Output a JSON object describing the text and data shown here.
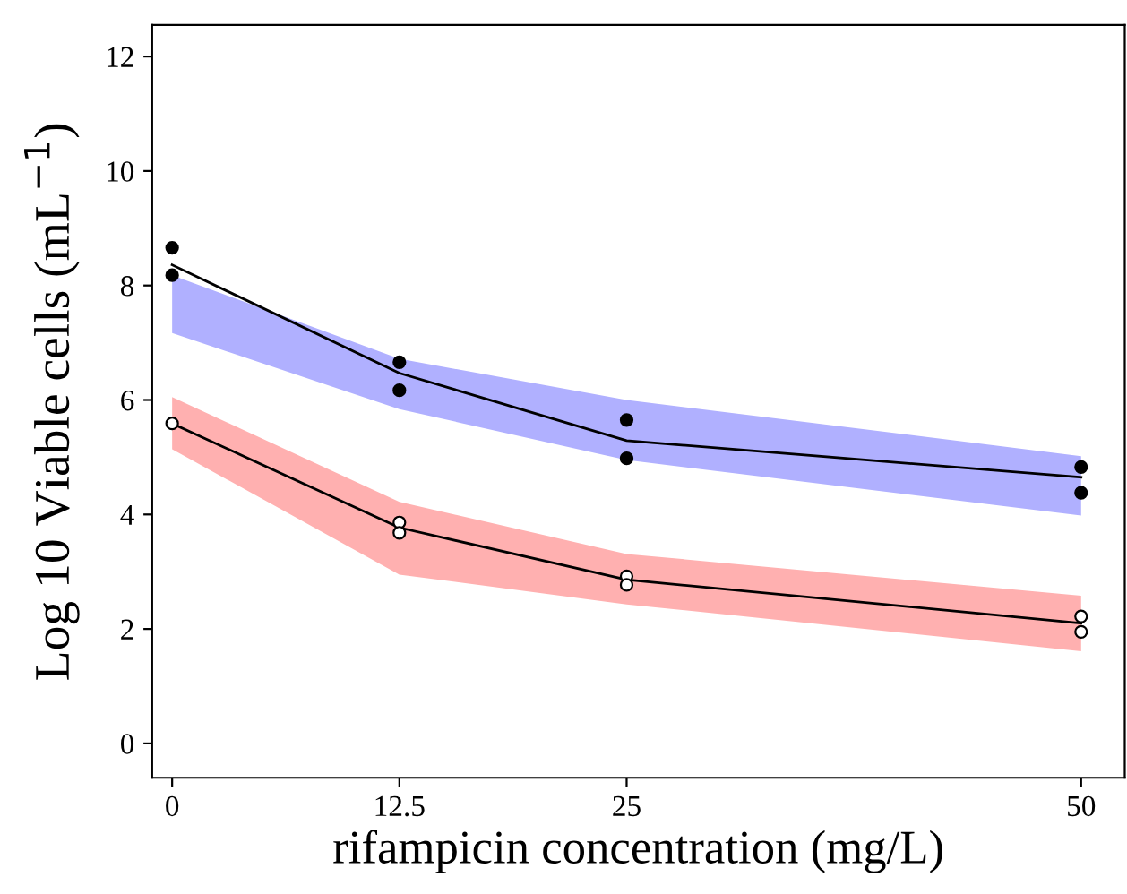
{
  "chart_data": {
    "type": "line",
    "xlabel": "rifampicin concentration (mg/L)",
    "ylabel": "Log 10 Viable cells (mL$^{−1}$)",
    "xlim": [
      -1.1,
      52.4
    ],
    "ylim": [
      -0.6,
      12.55
    ],
    "xticks": [
      0,
      12.5,
      25,
      50
    ],
    "yticks": [
      0,
      2,
      4,
      6,
      8,
      10,
      12
    ],
    "grid": false,
    "legend": false,
    "colors": [
      "#b0b0ff",
      "#ffb0b0"
    ],
    "series": [
      {
        "color": "#000000",
        "x": [
          0,
          12.5,
          25,
          50
        ],
        "values": [
          8.36,
          6.47,
          5.29,
          4.65
        ],
        "lower": [
          7.17,
          5.84,
          4.95,
          3.98
        ],
        "upper": [
          8.18,
          6.72,
          6.0,
          5.02
        ]
      },
      {
        "color": "#000000",
        "x": [
          0,
          12.5,
          25,
          50
        ],
        "values": [
          5.59,
          3.77,
          2.86,
          2.1
        ],
        "lower": [
          5.14,
          2.95,
          2.43,
          1.61
        ],
        "upper": [
          6.05,
          4.22,
          3.31,
          2.58
        ]
      },
      {
        "type": "scatter",
        "marker": "circle",
        "color": "#000000",
        "x": [
          0,
          0,
          12.5,
          12.5,
          25,
          25,
          50,
          50
        ],
        "values": [
          8.66,
          8.18,
          6.66,
          6.17,
          5.65,
          4.98,
          4.83,
          4.38
        ]
      },
      {
        "type": "scatter",
        "marker": "circle",
        "color": "#ffffff",
        "x": [
          0,
          12.5,
          12.5,
          25,
          25,
          50,
          50
        ],
        "values": [
          5.59,
          3.86,
          3.68,
          2.92,
          2.77,
          2.22,
          1.95
        ]
      }
    ]
  }
}
